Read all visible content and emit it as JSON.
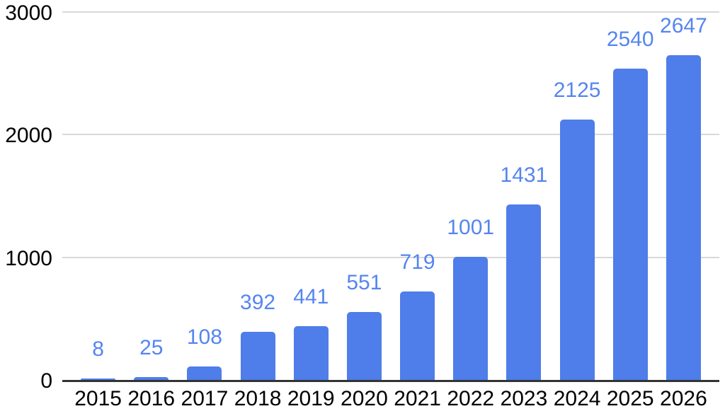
{
  "chart_data": {
    "type": "bar",
    "title": "",
    "xlabel": "",
    "ylabel": "",
    "categories": [
      "2015",
      "2016",
      "2017",
      "2018",
      "2019",
      "2020",
      "2021",
      "2022",
      "2023",
      "2024",
      "2025",
      "2026"
    ],
    "values": [
      8,
      25,
      108,
      392,
      441,
      551,
      719,
      1001,
      1431,
      2125,
      2540,
      2647
    ],
    "data_labels_visible": true,
    "ylim": [
      0,
      3000
    ],
    "yticks": [
      0,
      1000,
      2000,
      3000
    ],
    "grid": true,
    "legend": "none",
    "colors": {
      "bar": "#4f7de9",
      "data_label": "#5585f0",
      "grid_line": "#d9d9d9",
      "axis_line": "#333333",
      "tick_label": "#000000",
      "background": "#ffffff"
    }
  }
}
